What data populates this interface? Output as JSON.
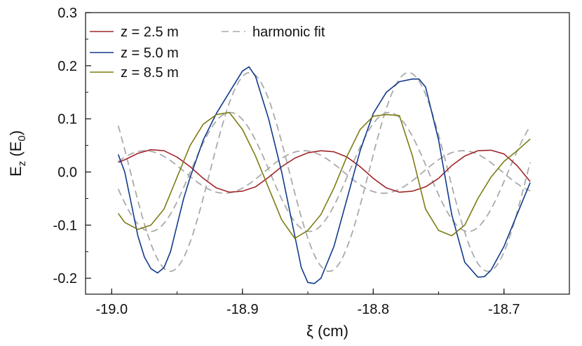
{
  "chart_data": {
    "type": "line",
    "xlabel": "ξ (cm)",
    "ylabel_main": "E",
    "ylabel_sub1": "z",
    "ylabel_mid": " (E",
    "ylabel_sub2": "0",
    "ylabel_end": ")",
    "xlim": [
      -19.02,
      -18.65
    ],
    "ylim": [
      -0.23,
      0.3
    ],
    "xticks": [
      {
        "value": -19.0,
        "label": "-19.0"
      },
      {
        "value": -18.9,
        "label": "-18.9"
      },
      {
        "value": -18.8,
        "label": "-18.8"
      },
      {
        "value": -18.7,
        "label": "-18.7"
      }
    ],
    "yticks": [
      {
        "value": -0.2,
        "label": "-0.2"
      },
      {
        "value": -0.1,
        "label": "-0.1"
      },
      {
        "value": 0.0,
        "label": "0.0"
      },
      {
        "value": 0.1,
        "label": "0.1"
      },
      {
        "value": 0.2,
        "label": "0.2"
      },
      {
        "value": 0.3,
        "label": "0.3"
      }
    ],
    "grid": false,
    "legend_position": "top-left",
    "series": [
      {
        "name": "z = 2.5 m",
        "color": "#a0262a",
        "style": "solid",
        "x": [
          -18.995,
          -18.99,
          -18.98,
          -18.97,
          -18.96,
          -18.95,
          -18.94,
          -18.93,
          -18.92,
          -18.91,
          -18.9,
          -18.89,
          -18.88,
          -18.87,
          -18.86,
          -18.85,
          -18.84,
          -18.83,
          -18.82,
          -18.81,
          -18.8,
          -18.79,
          -18.78,
          -18.77,
          -18.76,
          -18.75,
          -18.74,
          -18.73,
          -18.72,
          -18.71,
          -18.7,
          -18.69,
          -18.68
        ],
        "y": [
          0.018,
          0.023,
          0.035,
          0.042,
          0.04,
          0.028,
          0.01,
          -0.012,
          -0.03,
          -0.038,
          -0.036,
          -0.028,
          -0.01,
          0.01,
          0.026,
          0.036,
          0.04,
          0.038,
          0.028,
          0.01,
          -0.012,
          -0.03,
          -0.038,
          -0.036,
          -0.028,
          -0.012,
          0.012,
          0.03,
          0.04,
          0.041,
          0.034,
          0.012,
          -0.018
        ]
      },
      {
        "name": "z = 5.0 m",
        "color": "#123a8c",
        "style": "solid",
        "x": [
          -18.995,
          -18.99,
          -18.985,
          -18.98,
          -18.975,
          -18.97,
          -18.965,
          -18.96,
          -18.955,
          -18.95,
          -18.945,
          -18.94,
          -18.93,
          -18.92,
          -18.91,
          -18.9,
          -18.895,
          -18.89,
          -18.88,
          -18.87,
          -18.86,
          -18.855,
          -18.85,
          -18.845,
          -18.84,
          -18.83,
          -18.82,
          -18.81,
          -18.8,
          -18.79,
          -18.78,
          -18.77,
          -18.765,
          -18.76,
          -18.75,
          -18.74,
          -18.73,
          -18.72,
          -18.715,
          -18.71,
          -18.7,
          -18.69,
          -18.68
        ],
        "y": [
          0.033,
          0.0,
          -0.06,
          -0.12,
          -0.16,
          -0.182,
          -0.19,
          -0.18,
          -0.15,
          -0.1,
          -0.05,
          -0.01,
          0.06,
          0.11,
          0.15,
          0.19,
          0.198,
          0.18,
          0.1,
          0.0,
          -0.12,
          -0.18,
          -0.208,
          -0.21,
          -0.2,
          -0.14,
          -0.05,
          0.04,
          0.11,
          0.15,
          0.17,
          0.175,
          0.175,
          0.16,
          0.06,
          -0.08,
          -0.17,
          -0.198,
          -0.197,
          -0.185,
          -0.14,
          -0.08,
          -0.02
        ]
      },
      {
        "name": "z = 8.5 m",
        "color": "#7d7c14",
        "style": "solid",
        "x": [
          -18.995,
          -18.99,
          -18.98,
          -18.97,
          -18.96,
          -18.95,
          -18.94,
          -18.93,
          -18.92,
          -18.91,
          -18.9,
          -18.89,
          -18.88,
          -18.87,
          -18.86,
          -18.85,
          -18.84,
          -18.83,
          -18.82,
          -18.81,
          -18.8,
          -18.79,
          -18.78,
          -18.77,
          -18.76,
          -18.75,
          -18.74,
          -18.73,
          -18.72,
          -18.71,
          -18.7,
          -18.69,
          -18.68
        ],
        "y": [
          -0.078,
          -0.095,
          -0.108,
          -0.1,
          -0.07,
          -0.01,
          0.05,
          0.09,
          0.108,
          0.112,
          0.08,
          0.03,
          -0.03,
          -0.09,
          -0.125,
          -0.11,
          -0.08,
          -0.03,
          0.03,
          0.08,
          0.105,
          0.108,
          0.106,
          0.03,
          -0.07,
          -0.11,
          -0.12,
          -0.1,
          -0.05,
          -0.01,
          0.02,
          0.04,
          0.062
        ]
      },
      {
        "name": "harmonic fit",
        "color": "#aaaaaa",
        "style": "dashed",
        "fits": [
          {
            "amp": 0.187,
            "period": 0.1215,
            "phase_x": -18.8945
          },
          {
            "amp": 0.112,
            "period": 0.1215,
            "phase_x": -18.9095
          },
          {
            "amp": 0.04,
            "period": 0.1215,
            "phase_x": -18.9745
          }
        ],
        "x_range": [
          -18.995,
          -18.68
        ]
      }
    ]
  }
}
